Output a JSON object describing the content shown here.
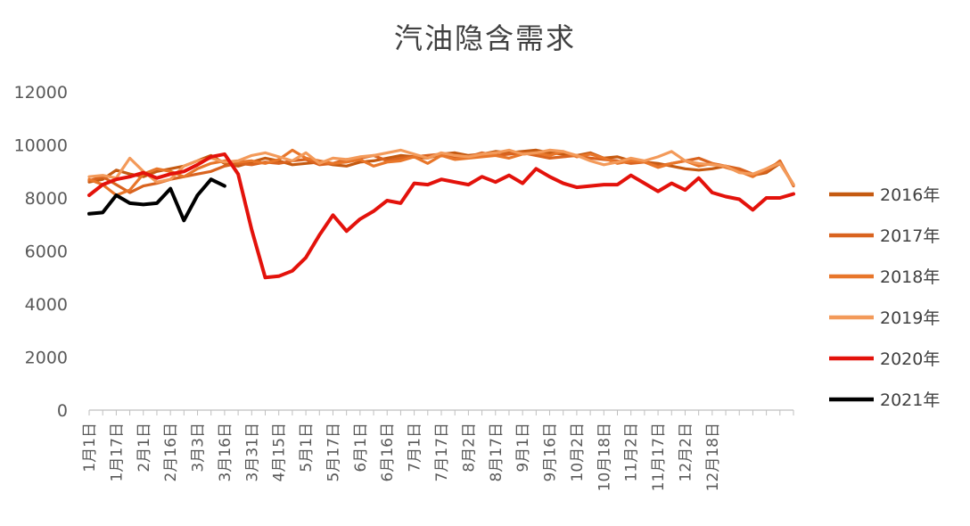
{
  "chart_data": {
    "type": "line",
    "title": "汽油隐含需求",
    "xlabel": "",
    "ylabel": "",
    "ylim": [
      0,
      12000
    ],
    "yticks": [
      0,
      2000,
      4000,
      6000,
      8000,
      10000,
      12000
    ],
    "grid": false,
    "legend_position": "right",
    "x_tick_labels": [
      "1月1日",
      "1月17日",
      "2月1日",
      "2月16日",
      "3月3日",
      "3月16日",
      "3月31日",
      "4月15日",
      "5月1日",
      "5月17日",
      "6月1日",
      "6月16日",
      "7月1日",
      "7月17日",
      "8月2日",
      "8月17日",
      "9月1日",
      "9月16日",
      "10月2日",
      "10月18日",
      "11月2日",
      "11月17日",
      "12月2日",
      "12月18日"
    ],
    "num_weeks": 53,
    "series": [
      {
        "name": "2016年",
        "color": "#c55a11",
        "values": [
          8600,
          8700,
          9050,
          8900,
          8800,
          9000,
          9100,
          9200,
          9400,
          9600,
          9300,
          9200,
          9350,
          9500,
          9400,
          9250,
          9300,
          9350,
          9250,
          9200,
          9350,
          9400,
          9500,
          9600,
          9550,
          9500,
          9650,
          9700,
          9600,
          9650,
          9750,
          9700,
          9750,
          9800,
          9700,
          9650,
          9600,
          9700,
          9500,
          9550,
          9400,
          9350,
          9300,
          9200,
          9100,
          9050,
          9100,
          9200,
          9000,
          8850,
          8950,
          9300,
          8500
        ]
      },
      {
        "name": "2017年",
        "color": "#d9631f",
        "values": [
          8650,
          8800,
          8500,
          8200,
          8450,
          8550,
          8700,
          8800,
          8900,
          9000,
          9200,
          9300,
          9250,
          9350,
          9300,
          9400,
          9450,
          9250,
          9300,
          9450,
          9500,
          9600,
          9400,
          9500,
          9550,
          9600,
          9650,
          9500,
          9550,
          9700,
          9600,
          9650,
          9700,
          9600,
          9500,
          9550,
          9600,
          9500,
          9450,
          9400,
          9300,
          9350,
          9200,
          9300,
          9400,
          9500,
          9300,
          9200,
          9100,
          8900,
          9000,
          9400,
          8450
        ]
      },
      {
        "name": "2018年",
        "color": "#e8762a",
        "values": [
          8700,
          8500,
          8100,
          8300,
          8900,
          9100,
          9000,
          8800,
          9100,
          9300,
          9400,
          9350,
          9400,
          9300,
          9450,
          9800,
          9500,
          9400,
          9300,
          9350,
          9450,
          9200,
          9350,
          9400,
          9550,
          9300,
          9600,
          9450,
          9500,
          9550,
          9600,
          9500,
          9650,
          9700,
          9600,
          9750,
          9550,
          9650,
          9500,
          9300,
          9400,
          9350,
          9150,
          9300,
          9400,
          9200,
          9300,
          9150,
          9000,
          8800,
          9100,
          9350,
          8500
        ]
      },
      {
        "name": "2019年",
        "color": "#f39a5a",
        "values": [
          8800,
          8850,
          8750,
          9500,
          9000,
          8600,
          8700,
          9200,
          9400,
          9500,
          9350,
          9400,
          9600,
          9700,
          9550,
          9400,
          9700,
          9300,
          9500,
          9450,
          9550,
          9600,
          9700,
          9800,
          9650,
          9500,
          9700,
          9600,
          9550,
          9650,
          9700,
          9800,
          9650,
          9700,
          9800,
          9750,
          9600,
          9400,
          9250,
          9350,
          9500,
          9400,
          9550,
          9750,
          9400,
          9300,
          9250,
          9200,
          8950,
          8900,
          9100,
          9300,
          8500
        ]
      },
      {
        "name": "2020年",
        "color": "#e3120b",
        "values": [
          8100,
          8500,
          8700,
          8800,
          8950,
          8750,
          8900,
          9000,
          9250,
          9550,
          9650,
          8900,
          6800,
          5000,
          5050,
          5250,
          5750,
          6600,
          7350,
          6750,
          7200,
          7500,
          7900,
          7800,
          8550,
          8500,
          8700,
          8600,
          8500,
          8800,
          8600,
          8850,
          8550,
          9100,
          8800,
          8550,
          8400,
          8450,
          8500,
          8500,
          8850,
          8550,
          8250,
          8550,
          8300,
          8750,
          8200,
          8050,
          7950,
          7550,
          8000,
          8000,
          8150
        ]
      },
      {
        "name": "2021年",
        "color": "#000000",
        "values": [
          7400,
          7450,
          8100,
          7800,
          7750,
          7800,
          8350,
          7150,
          8100,
          8700,
          8450
        ]
      }
    ]
  }
}
